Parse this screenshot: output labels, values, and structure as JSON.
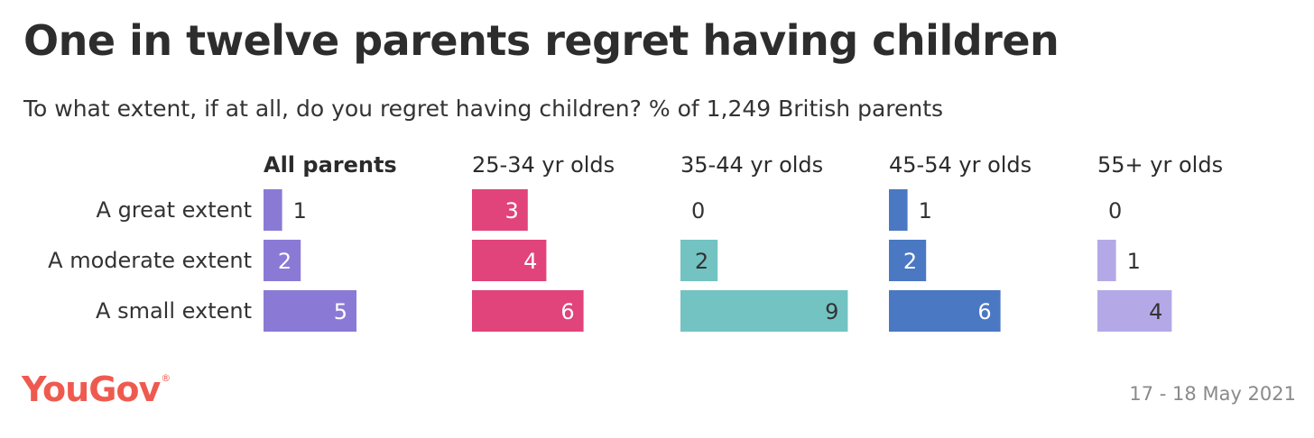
{
  "title": "One in twelve parents regret having children",
  "subtitle": "To what extent, if at all, do you regret having children? % of 1,249 British parents",
  "brand": "YouGov",
  "brand_mark": "®",
  "date": "17 - 18 May 2021",
  "chart_data": {
    "type": "bar",
    "orientation": "horizontal",
    "categories": [
      "A great extent",
      "A moderate extent",
      "A small extent"
    ],
    "series": [
      {
        "name": "All parents",
        "values": [
          1,
          2,
          5
        ],
        "color": "#8a7ad6",
        "emphasis": true
      },
      {
        "name": "25-34 yr olds",
        "values": [
          3,
          4,
          6
        ],
        "color": "#e0447a"
      },
      {
        "name": "35-44 yr olds",
        "values": [
          0,
          2,
          9
        ],
        "color": "#72c3c2"
      },
      {
        "name": "45-54 yr olds",
        "values": [
          1,
          2,
          6
        ],
        "color": "#4a78c2"
      },
      {
        "name": "55+ yr olds",
        "values": [
          0,
          1,
          4
        ],
        "color": "#b4a9e6"
      }
    ],
    "value_unit": "%",
    "grid": false,
    "legend": "none"
  }
}
